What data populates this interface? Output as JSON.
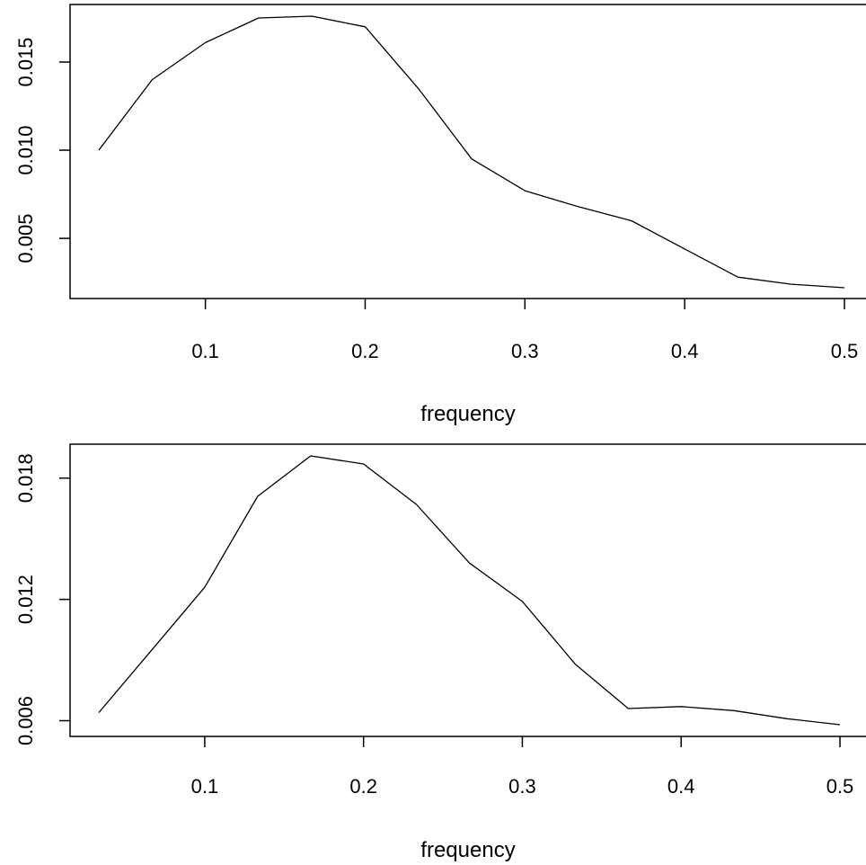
{
  "chart_data": [
    {
      "type": "line",
      "title": "",
      "xlabel": "frequency",
      "ylabel": "",
      "x": [
        0.0333,
        0.0667,
        0.1,
        0.1333,
        0.1667,
        0.2,
        0.2333,
        0.2667,
        0.3,
        0.3333,
        0.3667,
        0.4,
        0.4333,
        0.4667,
        0.5
      ],
      "series": [
        {
          "values": [
            0.01,
            0.014,
            0.0161,
            0.0175,
            0.0176,
            0.017,
            0.0135,
            0.0095,
            0.0077,
            0.0068,
            0.006,
            0.0044,
            0.0028,
            0.0024,
            0.0022
          ]
        }
      ],
      "xlim": [
        0.0333,
        0.5
      ],
      "ylim": [
        0.0022,
        0.0176
      ],
      "xticks": [
        "0.1",
        "0.2",
        "0.3",
        "0.4",
        "0.5"
      ],
      "yticks": [
        "0.005",
        "0.010",
        "0.015"
      ],
      "grid": false
    },
    {
      "type": "line",
      "title": "",
      "xlabel": "frequency",
      "ylabel": "",
      "x": [
        0.0333,
        0.0667,
        0.1,
        0.1333,
        0.1667,
        0.2,
        0.2333,
        0.2667,
        0.3,
        0.3333,
        0.3667,
        0.4,
        0.4333,
        0.4667,
        0.5
      ],
      "series": [
        {
          "values": [
            0.0064,
            0.0095,
            0.0126,
            0.0171,
            0.0191,
            0.0187,
            0.0167,
            0.0138,
            0.0119,
            0.0088,
            0.0066,
            0.0067,
            0.0065,
            0.0061,
            0.0058
          ]
        }
      ],
      "xlim": [
        0.0333,
        0.5
      ],
      "ylim": [
        0.0058,
        0.0191
      ],
      "xticks": [
        "0.1",
        "0.2",
        "0.3",
        "0.4",
        "0.5"
      ],
      "yticks": [
        "0.006",
        "0.012",
        "0.018"
      ],
      "grid": false
    }
  ]
}
